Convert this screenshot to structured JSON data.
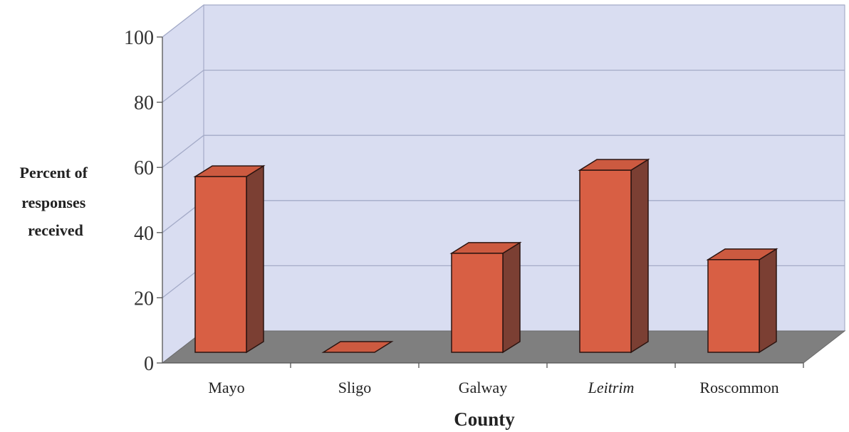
{
  "chart_data": {
    "type": "bar",
    "categories": [
      "Mayo",
      "Sligo",
      "Galway",
      "Leitrim",
      "Roscommon"
    ],
    "values": [
      55,
      0,
      31,
      57,
      29
    ],
    "ylim": [
      0,
      100
    ],
    "yticks": [
      0,
      20,
      40,
      60,
      80,
      100
    ],
    "xlabel": "County",
    "ylabel_lines": [
      "Percent of",
      "responses",
      "received"
    ],
    "grid": true,
    "legend": "none",
    "style": "3d-column",
    "colors": {
      "bar_front": "#d85f44",
      "bar_side": "#7b3f33",
      "bar_top": "#cc5a40",
      "wall": "#d9ddf1",
      "floor": "#7f7f7f",
      "gridline": "#a4abc8"
    }
  }
}
